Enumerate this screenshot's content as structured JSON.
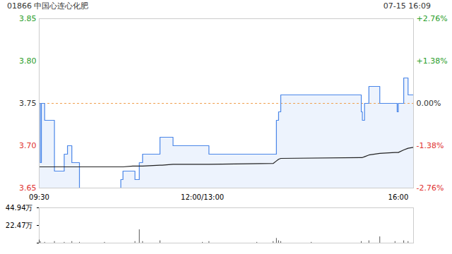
{
  "chart_data": [
    {
      "type": "line",
      "title": "01866 中国心连心化肥",
      "subtitle": "07-15 16:09",
      "x": [
        0,
        1,
        2,
        5,
        14,
        19,
        23,
        26,
        30,
        37,
        75,
        77,
        86,
        88,
        92,
        95,
        111,
        113,
        123,
        150,
        156,
        215,
        218,
        220,
        222,
        296,
        297,
        299,
        303,
        313,
        327,
        329,
        330,
        335,
        339,
        344
      ],
      "series": [
        {
          "color": "#4a86e8",
          "line_style": "step",
          "values": [
            3.75,
            3.68,
            3.75,
            3.73,
            3.67,
            3.67,
            3.69,
            3.7,
            3.68,
            3.65,
            3.66,
            3.67,
            3.67,
            3.66,
            3.68,
            3.69,
            3.71,
            3.71,
            3.7,
            3.7,
            3.69,
            3.69,
            3.73,
            3.74,
            3.76,
            3.74,
            3.73,
            3.75,
            3.77,
            3.75,
            3.75,
            3.74,
            3.75,
            3.78,
            3.76,
            3.76
          ]
        },
        {
          "color": "#222222",
          "line_style": "solid",
          "values": [
            3.675,
            3.675,
            3.675,
            3.675,
            3.675,
            3.675,
            3.675,
            3.675,
            3.675,
            3.675,
            3.675,
            3.675,
            3.676,
            3.676,
            3.676,
            3.676,
            3.677,
            3.677,
            3.678,
            3.678,
            3.678,
            3.679,
            3.682,
            3.684,
            3.685,
            3.686,
            3.686,
            3.687,
            3.689,
            3.691,
            3.692,
            3.692,
            3.692,
            3.695,
            3.697,
            3.698
          ]
        }
      ],
      "reference_line": {
        "value": 3.75,
        "color": "#f0a050",
        "line_style": "dashed"
      },
      "xlim": [
        0,
        344
      ],
      "xticks": [
        {
          "value": 0,
          "label": "09:30"
        },
        {
          "value": 150,
          "label": "12:00/13:00"
        },
        {
          "value": 330,
          "label": "16:00"
        }
      ],
      "ylim": [
        3.65,
        3.85
      ],
      "yticks": [
        {
          "value": 3.65,
          "label": "3.65"
        },
        {
          "value": 3.7,
          "label": "3.70"
        },
        {
          "value": 3.75,
          "label": "3.75"
        },
        {
          "value": 3.8,
          "label": "3.80"
        },
        {
          "value": 3.85,
          "label": "3.85"
        }
      ],
      "y2lim": [
        -2.76,
        2.76
      ],
      "y2ticks": [
        {
          "value": -2.76,
          "label": "-2.76%"
        },
        {
          "value": -1.38,
          "label": "-1.38%"
        },
        {
          "value": 0,
          "label": "0.00%"
        },
        {
          "value": 1.38,
          "label": "+1.38%"
        },
        {
          "value": 2.76,
          "label": "+2.76%"
        }
      ]
    },
    {
      "type": "bar",
      "x": [
        0,
        1,
        5,
        14,
        23,
        30,
        37,
        60,
        88,
        92,
        95,
        111,
        150,
        156,
        200,
        215,
        218,
        220,
        222,
        250,
        296,
        303,
        313,
        327,
        335,
        339,
        344
      ],
      "values": [
        4,
        2,
        1,
        2,
        1,
        2,
        1,
        1,
        2,
        17,
        2,
        3,
        1,
        2,
        1,
        2,
        6,
        3,
        2,
        1,
        2,
        3,
        8,
        2,
        3,
        2,
        5
      ],
      "color": "#555555",
      "xlim": [
        0,
        344
      ],
      "ylim": [
        0,
        44.94
      ],
      "yticks": [
        0,
        {
          "value": 22.47,
          "label": "22.47万"
        },
        {
          "value": 44.94,
          "label": "44.94万"
        }
      ],
      "tick_labels": "y"
    }
  ]
}
